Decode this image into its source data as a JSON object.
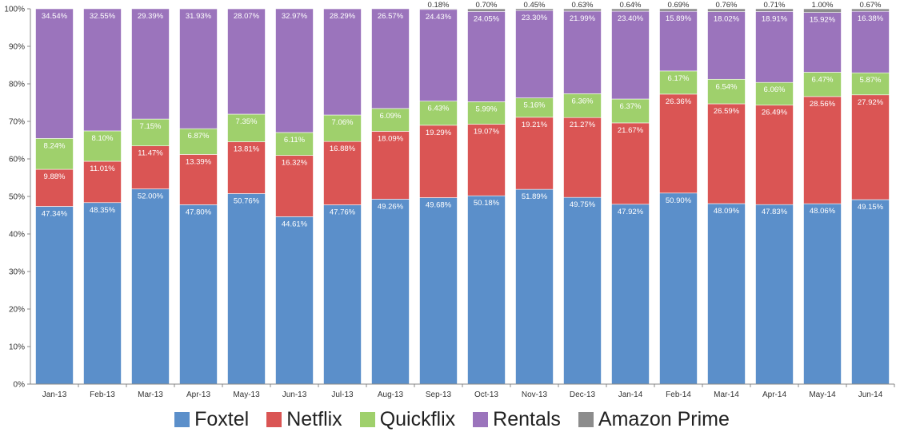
{
  "chart_data": {
    "type": "bar",
    "stacked": true,
    "categories": [
      "Jan-13",
      "Feb-13",
      "Mar-13",
      "Apr-13",
      "May-13",
      "Jun-13",
      "Jul-13",
      "Aug-13",
      "Sep-13",
      "Oct-13",
      "Nov-13",
      "Dec-13",
      "Jan-14",
      "Feb-14",
      "Mar-14",
      "Apr-14",
      "May-14",
      "Jun-14"
    ],
    "series": [
      {
        "name": "Foxtel",
        "color": "#5b8fca",
        "values": [
          47.34,
          48.35,
          52.0,
          47.8,
          50.76,
          44.61,
          47.76,
          49.26,
          49.68,
          50.18,
          51.89,
          49.75,
          47.92,
          50.9,
          48.09,
          47.83,
          48.06,
          49.15
        ],
        "labels": [
          "47.34%",
          "48.35%",
          "52.00%",
          "47.80%",
          "50.76%",
          "44.61%",
          "47.76%",
          "49.26%",
          "49.68%",
          "50.18%",
          "51.89%",
          "49.75%",
          "47.92%",
          "50.90%",
          "48.09%",
          "47.83%",
          "48.06%",
          "49.15%"
        ]
      },
      {
        "name": "Netflix",
        "color": "#da5554",
        "values": [
          9.88,
          11.01,
          11.47,
          13.39,
          13.81,
          16.32,
          16.88,
          18.09,
          19.29,
          19.07,
          19.21,
          21.27,
          21.67,
          26.36,
          26.59,
          26.49,
          28.56,
          27.92
        ],
        "labels": [
          "9.88%",
          "11.01%",
          "11.47%",
          "13.39%",
          "13.81%",
          "16.32%",
          "16.88%",
          "18.09%",
          "19.29%",
          "19.07%",
          "19.21%",
          "21.27%",
          "21.67%",
          "26.36%",
          "26.59%",
          "26.49%",
          "28.56%",
          "27.92%"
        ]
      },
      {
        "name": "Quickflix",
        "color": "#9fd06c",
        "values": [
          8.24,
          8.1,
          7.15,
          6.87,
          7.35,
          6.11,
          7.06,
          6.09,
          6.43,
          5.99,
          5.16,
          6.36,
          6.37,
          6.17,
          6.54,
          6.06,
          6.47,
          5.87
        ],
        "labels": [
          "8.24%",
          "8.10%",
          "7.15%",
          "6.87%",
          "7.35%",
          "6.11%",
          "7.06%",
          "6.09%",
          "6.43%",
          "5.99%",
          "5.16%",
          "6.36%",
          "6.37%",
          "6.17%",
          "6.54%",
          "6.06%",
          "6.47%",
          "5.87%"
        ]
      },
      {
        "name": "Rentals",
        "color": "#9b74bc",
        "values": [
          34.54,
          32.55,
          29.39,
          31.93,
          28.07,
          32.97,
          28.29,
          26.57,
          24.43,
          24.05,
          23.3,
          21.99,
          23.4,
          15.89,
          18.02,
          18.91,
          15.92,
          16.38
        ],
        "labels": [
          "34.54%",
          "32.55%",
          "29.39%",
          "31.93%",
          "28.07%",
          "32.97%",
          "28.29%",
          "26.57%",
          "24.43%",
          "24.05%",
          "23.30%",
          "21.99%",
          "23.40%",
          "15.89%",
          "18.02%",
          "18.91%",
          "15.92%",
          "16.38%"
        ]
      },
      {
        "name": "Amazon Prime",
        "color": "#8c8c8c",
        "values": [
          0,
          0,
          0,
          0,
          0,
          0,
          0,
          0,
          0.18,
          0.7,
          0.45,
          0.63,
          0.64,
          0.69,
          0.76,
          0.71,
          1.0,
          0.67
        ],
        "labels": [
          "",
          "",
          "",
          "",
          "",
          "",
          "",
          "",
          "0.18%",
          "0.70%",
          "0.45%",
          "0.63%",
          "0.64%",
          "0.69%",
          "0.76%",
          "0.71%",
          "1.00%",
          "0.67%"
        ]
      }
    ],
    "y_ticks": [
      "0%",
      "10%",
      "20%",
      "30%",
      "40%",
      "50%",
      "60%",
      "70%",
      "80%",
      "90%",
      "100%"
    ],
    "ylim": [
      0,
      100
    ],
    "grid": false,
    "legend": "bottom"
  }
}
